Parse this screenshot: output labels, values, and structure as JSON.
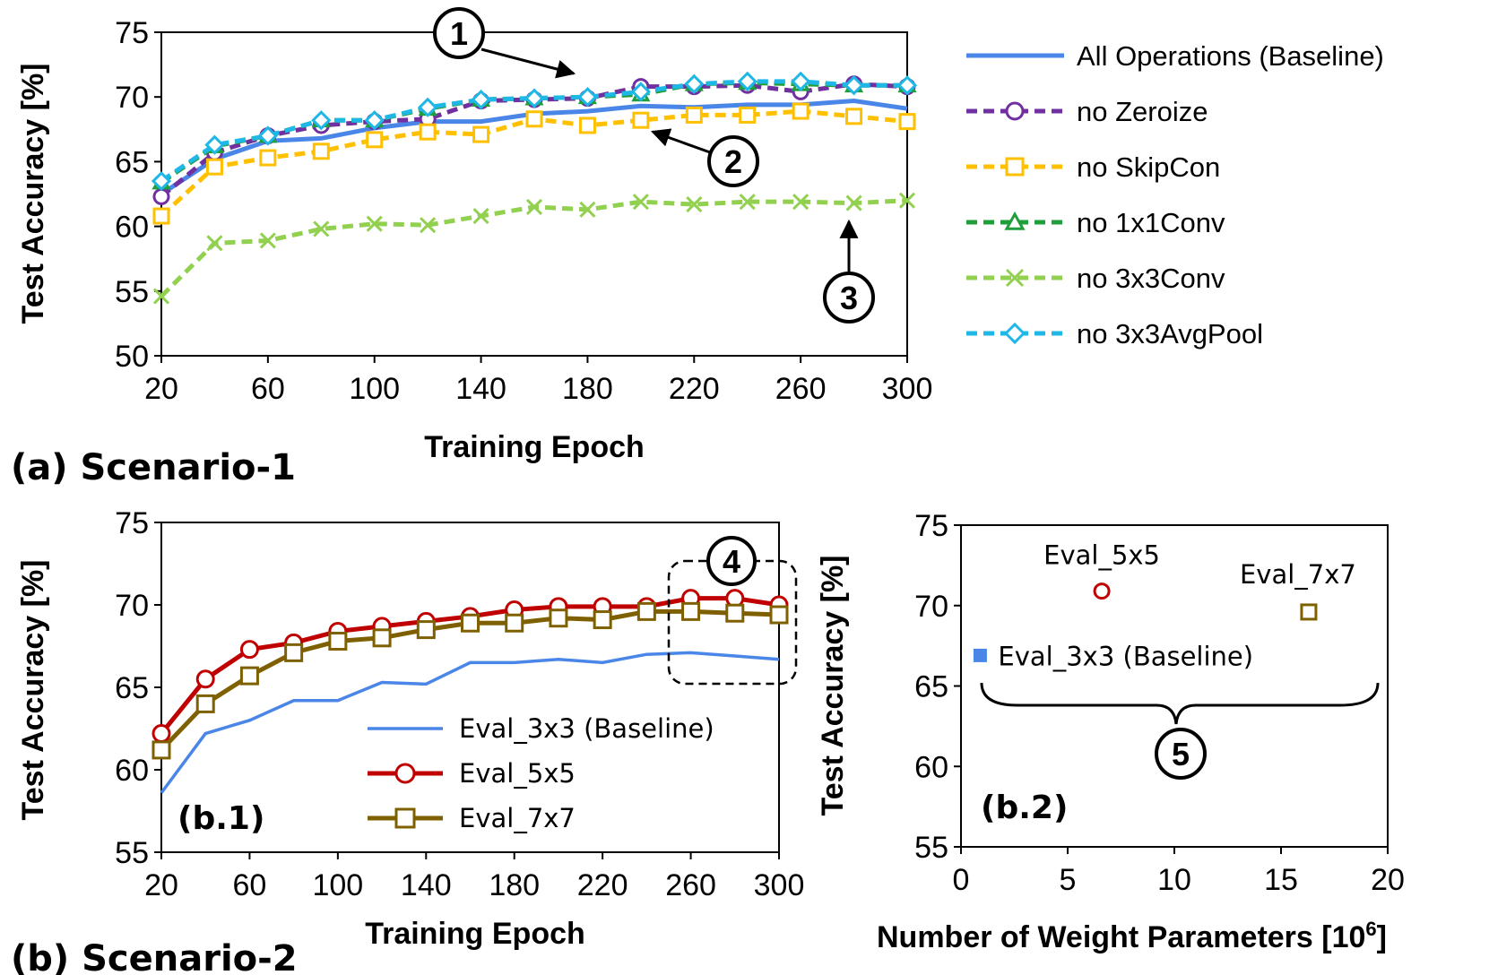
{
  "chart_data": [
    {
      "id": "a",
      "type": "line",
      "caption": "(a) Scenario-1",
      "xlabel": "Training Epoch",
      "ylabel": "Test Accuracy [%]",
      "xlim": [
        20,
        300
      ],
      "ylim": [
        50,
        75
      ],
      "xticks": [
        "20",
        "60",
        "100",
        "140",
        "180",
        "220",
        "260",
        "300"
      ],
      "yticks": [
        "50",
        "55",
        "60",
        "65",
        "70",
        "75"
      ],
      "x": [
        20,
        40,
        60,
        80,
        100,
        120,
        140,
        160,
        180,
        200,
        220,
        240,
        260,
        280,
        300
      ],
      "series": [
        {
          "name": "All Operations (Baseline)",
          "color": "#4a86e8",
          "dash": "",
          "marker": "none",
          "values": [
            62.5,
            65.2,
            66.6,
            66.8,
            67.6,
            68.1,
            68.1,
            68.7,
            68.9,
            69.3,
            69.2,
            69.4,
            69.4,
            69.7,
            69.1
          ]
        },
        {
          "name": "no Zeroize",
          "color": "#7030a0",
          "dash": "12,7",
          "marker": "circle",
          "values": [
            62.3,
            65.7,
            67.0,
            67.8,
            68.1,
            68.3,
            69.7,
            69.8,
            69.9,
            70.8,
            70.8,
            70.9,
            70.4,
            71.0,
            70.8
          ]
        },
        {
          "name": "no SkipCon",
          "color": "#ffc000",
          "dash": "12,7",
          "marker": "square",
          "values": [
            60.8,
            64.6,
            65.3,
            65.8,
            66.7,
            67.3,
            67.1,
            68.3,
            67.8,
            68.2,
            68.6,
            68.6,
            68.9,
            68.5,
            68.1
          ]
        },
        {
          "name": "no 1x1Conv",
          "color": "#1f9e3b",
          "dash": "12,7",
          "marker": "triangle",
          "values": [
            63.4,
            66.2,
            67.0,
            68.2,
            68.2,
            69.1,
            69.8,
            69.9,
            70.0,
            70.2,
            71.0,
            71.1,
            71.0,
            70.9,
            70.9
          ]
        },
        {
          "name": "no 3x3Conv",
          "color": "#92d050",
          "dash": "12,7",
          "marker": "x",
          "values": [
            54.6,
            58.7,
            58.9,
            59.8,
            60.2,
            60.1,
            60.8,
            61.5,
            61.3,
            61.9,
            61.7,
            61.9,
            61.9,
            61.8,
            62.0
          ]
        },
        {
          "name": "no 3x3AvgPool",
          "color": "#1fb7e6",
          "dash": "12,7",
          "marker": "diamond",
          "values": [
            63.5,
            66.3,
            67.0,
            68.2,
            68.2,
            69.2,
            69.8,
            69.9,
            70.0,
            70.4,
            71.0,
            71.2,
            71.2,
            70.9,
            70.9
          ]
        }
      ],
      "annotations": [
        "1",
        "2",
        "3"
      ]
    },
    {
      "id": "b1",
      "type": "line",
      "caption": "(b) Scenario-2",
      "panel_label": "(b.1)",
      "xlabel": "Training Epoch",
      "ylabel": "Test Accuracy [%]",
      "xlim": [
        20,
        300
      ],
      "ylim": [
        55,
        75
      ],
      "xticks": [
        "20",
        "60",
        "100",
        "140",
        "180",
        "220",
        "260",
        "300"
      ],
      "yticks": [
        "55",
        "60",
        "65",
        "70",
        "75"
      ],
      "x": [
        20,
        40,
        60,
        80,
        100,
        120,
        140,
        160,
        180,
        200,
        220,
        240,
        260,
        280,
        300
      ],
      "series": [
        {
          "name": "Eval_3x3 (Baseline)",
          "color": "#4a86e8",
          "marker": "none",
          "values": [
            58.6,
            62.2,
            63.0,
            64.2,
            64.2,
            65.3,
            65.2,
            66.5,
            66.5,
            66.7,
            66.5,
            67.0,
            67.1,
            66.9,
            66.7
          ]
        },
        {
          "name": "Eval_5x5",
          "color": "#c00000",
          "marker": "circle",
          "values": [
            62.2,
            65.5,
            67.3,
            67.7,
            68.4,
            68.7,
            69.0,
            69.3,
            69.7,
            69.9,
            69.9,
            69.9,
            70.4,
            70.4,
            70.0
          ]
        },
        {
          "name": "Eval_7x7",
          "color": "#7f6000",
          "marker": "square",
          "values": [
            61.2,
            64.0,
            65.7,
            67.1,
            67.8,
            68.0,
            68.5,
            68.9,
            68.9,
            69.2,
            69.1,
            69.6,
            69.6,
            69.5,
            69.4
          ]
        }
      ],
      "annotations": [
        "4"
      ]
    },
    {
      "id": "b2",
      "type": "scatter",
      "panel_label": "(b.2)",
      "xlabel": "Number of Weight Parameters [10",
      "xlabel_sup": "6",
      "xlabel_end": "]",
      "ylabel": "Test Accuracy [%]",
      "xlim": [
        0,
        20
      ],
      "ylim": [
        55,
        75
      ],
      "xticks": [
        "0",
        "5",
        "10",
        "15",
        "20"
      ],
      "yticks": [
        "55",
        "60",
        "65",
        "70",
        "75"
      ],
      "points": [
        {
          "name": "Eval_3x3 (Baseline)",
          "x": 0.9,
          "y": 66.9,
          "color": "#4a86e8",
          "marker": "filled-square"
        },
        {
          "name": "Eval_5x5",
          "x": 6.6,
          "y": 70.9,
          "color": "#c00000",
          "marker": "circle"
        },
        {
          "name": "Eval_7x7",
          "x": 16.3,
          "y": 69.6,
          "color": "#7f6000",
          "marker": "square"
        }
      ],
      "annotations": [
        "5"
      ]
    }
  ]
}
